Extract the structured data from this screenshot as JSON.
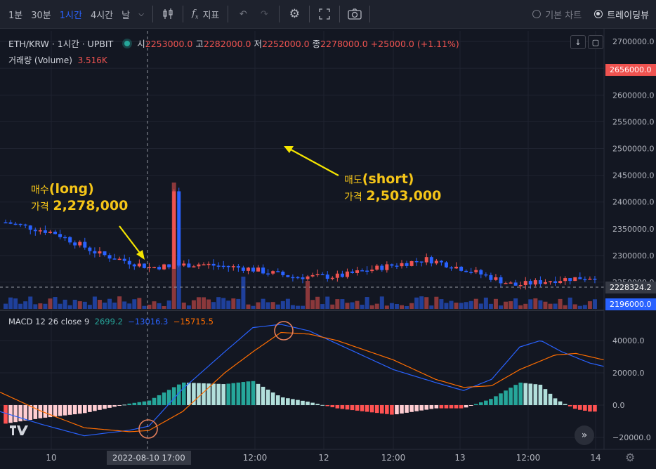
{
  "toolbar": {
    "intervals": [
      "1분",
      "30분",
      "1시간",
      "4시간",
      "날"
    ],
    "active_interval": "1시간",
    "indicators_label": "지표",
    "radio_basic": "기본 차트",
    "radio_tv": "트레이딩뷰"
  },
  "legend": {
    "symbol": "ETH/KRW · 1시간 · UPBIT",
    "open_label": "시",
    "open": "2253000.0",
    "high_label": "고",
    "high": "2282000.0",
    "low_label": "저",
    "low": "2252000.0",
    "close_label": "종",
    "close": "2278000.0",
    "change": "+25000.0 (+1.11%)",
    "volume_label": "거래량 (Volume)",
    "volume_value": "3.516K",
    "macd_label": "MACD 12 26 close 9",
    "macd_hist": "2699.2",
    "macd_line": "−13016.3",
    "macd_signal": "−15715.5"
  },
  "annotations": {
    "buy_title": "매수",
    "buy_tag": "(long)",
    "buy_price_label": "가격",
    "buy_price": "2,278,000",
    "sell_title": "매도",
    "sell_tag": "(short)",
    "sell_price_label": "가격",
    "sell_price": "2,503,000"
  },
  "price_axis": {
    "ticks": [
      "2700000.0",
      "2650000.0",
      "2600000.0",
      "2550000.0",
      "2500000.0",
      "2450000.0",
      "2400000.0",
      "2350000.0",
      "2300000.0",
      "2250000.0"
    ],
    "last_price": "2656000.0",
    "crosshair_price": "2228324.2",
    "volume_axis": "2196000.0"
  },
  "macd_axis": {
    "ticks": [
      "40000.0",
      "20000.0",
      "0.0",
      "−20000.0"
    ]
  },
  "time_axis": {
    "ticks": [
      "10",
      "12:00",
      "12",
      "12:00",
      "13",
      "12:00",
      "14"
    ],
    "crosshair_time": "2022-08-10   17:00"
  },
  "colors": {
    "up": "#ef5350",
    "down": "#2962ff",
    "accent": "#f5c518",
    "bg": "#131722"
  },
  "chart_data": {
    "type": "candlestick",
    "symbol": "ETH/KRW",
    "interval": "1시간",
    "ylim": [
      2200000,
      2720000
    ],
    "entry_price": 2278000,
    "exit_price": 2503000,
    "close_path": [
      [
        2022,
        2362000
      ],
      [
        2085,
        2342000
      ],
      [
        2141,
        2303000
      ],
      [
        2205,
        2278000
      ],
      [
        2268,
        2284000
      ],
      [
        2329,
        2276000
      ],
      [
        2388,
        2260000
      ],
      [
        2447,
        2261000
      ],
      [
        2502,
        2278000
      ],
      [
        2560,
        2293000
      ],
      [
        2614,
        2272000
      ],
      [
        2672,
        2244000
      ],
      [
        2726,
        2255000
      ],
      [
        2782,
        2261000
      ],
      [
        2843,
        2275000
      ],
      [
        2900,
        2400000
      ],
      [
        2960,
        2420000
      ],
      [
        3021,
        2418000
      ],
      [
        3076,
        2400000
      ],
      [
        3128,
        2428000
      ],
      [
        3186,
        2459000
      ],
      [
        3246,
        2485000
      ],
      [
        3304,
        2525000
      ],
      [
        3363,
        2500000
      ],
      [
        3422,
        2512000
      ],
      [
        3481,
        2505000
      ],
      [
        3540,
        2503000
      ],
      [
        3598,
        2510000
      ],
      [
        3657,
        2548000
      ],
      [
        3716,
        2530000
      ],
      [
        3773,
        2514000
      ],
      [
        3832,
        2510000
      ],
      [
        3890,
        2520000
      ],
      [
        3949,
        2505000
      ],
      [
        4008,
        2525000
      ],
      [
        4067,
        2535000
      ],
      [
        4125,
        2525000
      ],
      [
        4184,
        2510000
      ],
      [
        4243,
        2500000
      ],
      [
        4302,
        2520000
      ],
      [
        4361,
        2540000
      ],
      [
        4420,
        2548000
      ],
      [
        4479,
        2580000
      ],
      [
        4538,
        2590000
      ],
      [
        4597,
        2620000
      ],
      [
        4656,
        2630000
      ],
      [
        4715,
        2660000
      ],
      [
        4774,
        2656000
      ]
    ]
  }
}
